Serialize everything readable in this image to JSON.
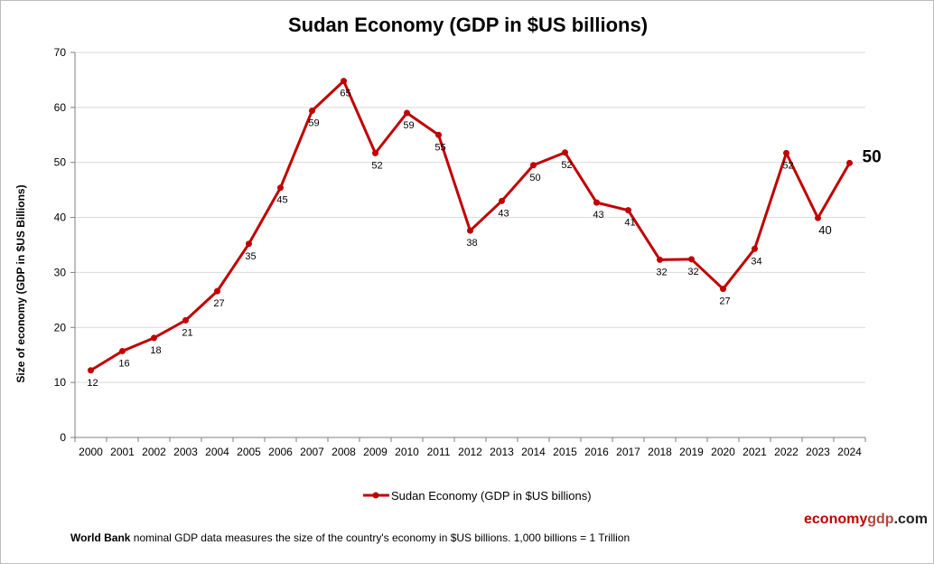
{
  "chart_data": {
    "type": "line",
    "title": "Sudan Economy (GDP in $US billions)",
    "ylabel": "Size of economy (GDP in $US Billions)",
    "xlabel": "",
    "ylim": [
      0,
      70
    ],
    "yticks": [
      0,
      10,
      20,
      30,
      40,
      50,
      60,
      70
    ],
    "categories": [
      "2000",
      "2001",
      "2002",
      "2003",
      "2004",
      "2005",
      "2006",
      "2007",
      "2008",
      "2009",
      "2010",
      "2011",
      "2012",
      "2013",
      "2014",
      "2015",
      "2016",
      "2017",
      "2018",
      "2019",
      "2020",
      "2021",
      "2022",
      "2023",
      "2024"
    ],
    "series": [
      {
        "name": "Sudan Economy (GDP in $US billions)",
        "color": "#c00000",
        "values": [
          12.2,
          15.7,
          18.1,
          21.3,
          26.6,
          35.2,
          45.4,
          59.4,
          64.8,
          51.7,
          59.0,
          55.0,
          37.6,
          43.0,
          49.5,
          51.8,
          42.7,
          41.3,
          32.3,
          32.4,
          27.0,
          34.3,
          51.7,
          39.9,
          49.9
        ],
        "labels": [
          "12",
          "16",
          "18",
          "21",
          "27",
          "35",
          "45",
          "59",
          "65",
          "52",
          "59",
          "55",
          "38",
          "43",
          "50",
          "52",
          "43",
          "41",
          "32",
          "32",
          "27",
          "34",
          "52",
          "40",
          "50"
        ]
      }
    ],
    "grid": true,
    "legend_position": "bottom"
  },
  "footnote": {
    "source_bold": "World Bank",
    "text": " nominal GDP data  measures the size of the country's economy in $US billions. 1,000 billions = 1 Trillion"
  },
  "brand": {
    "part1": "economy",
    "part2": "gdp",
    "part3": ".com"
  }
}
